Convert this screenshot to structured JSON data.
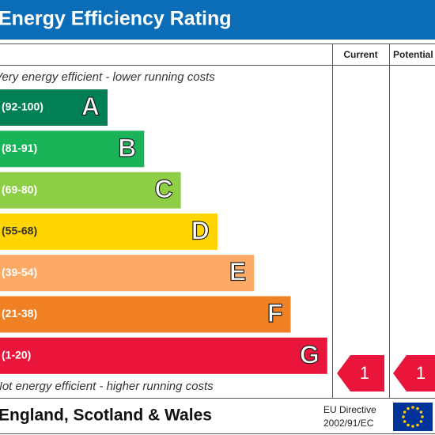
{
  "header": {
    "title": "Energy Efficiency Rating"
  },
  "columns": [
    "Current",
    "Potential"
  ],
  "top_note": "Very energy efficient - lower running costs",
  "bands": [
    {
      "range": "(92-100)",
      "letter": "A"
    },
    {
      "range": "(81-91)",
      "letter": "B"
    },
    {
      "range": "(69-80)",
      "letter": "C"
    },
    {
      "range": "(55-68)",
      "letter": "D"
    },
    {
      "range": "(39-54)",
      "letter": "E"
    },
    {
      "range": "(21-38)",
      "letter": "F"
    },
    {
      "range": "(1-20)",
      "letter": "G"
    }
  ],
  "bottom_note": "Not energy efficient - higher running costs",
  "current": "1",
  "potential": "1",
  "footer": {
    "region": "England, Scotland & Wales",
    "directive": [
      "EU Directive",
      "2002/91/EC"
    ]
  }
}
